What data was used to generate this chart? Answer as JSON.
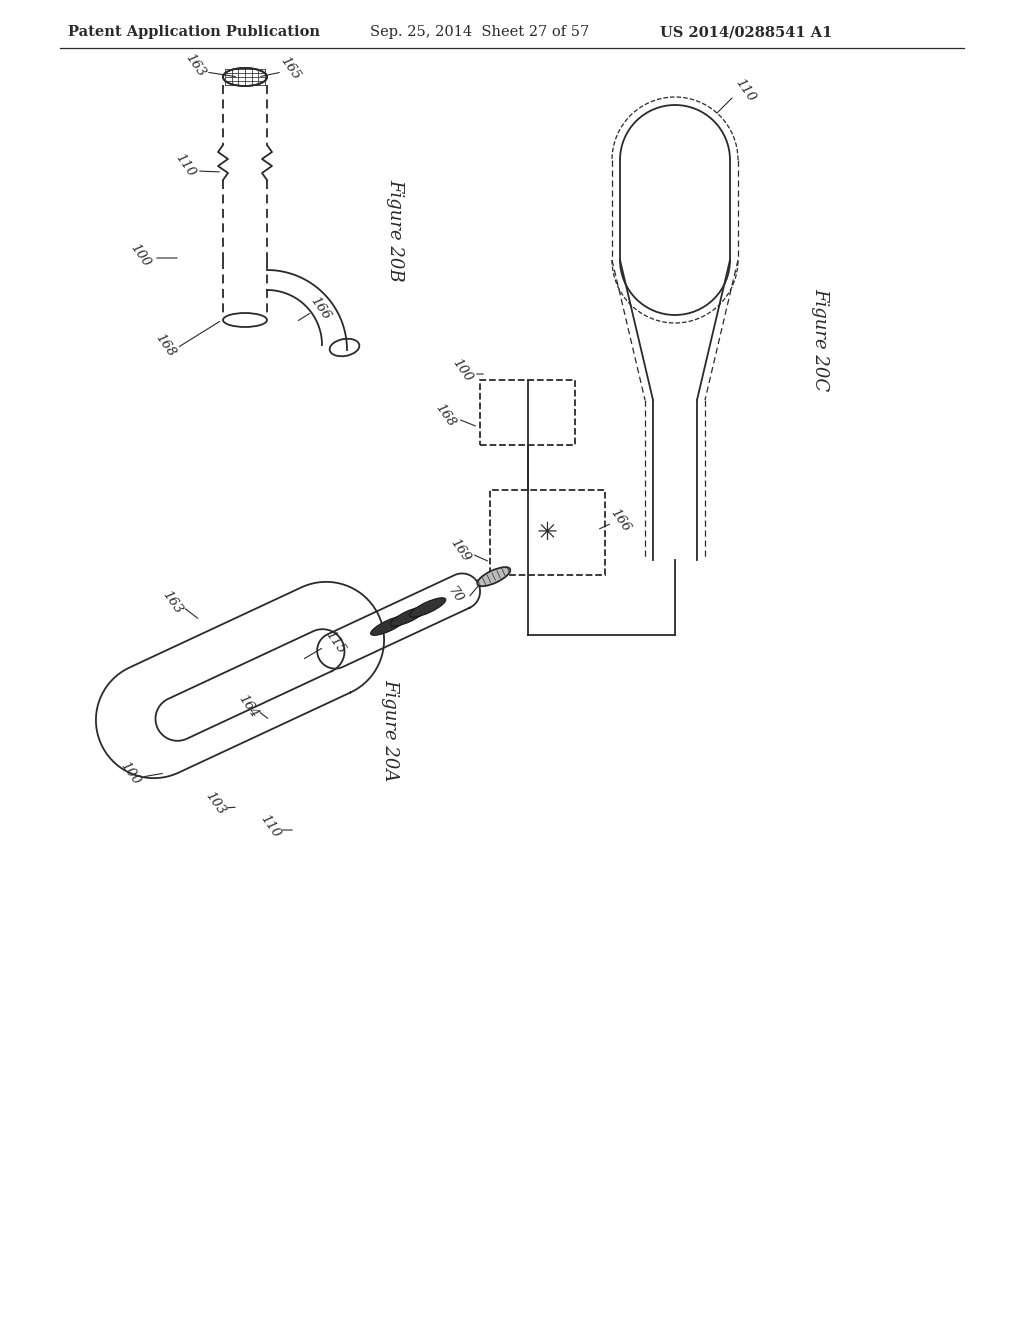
{
  "bg_color": "#ffffff",
  "line_color": "#2a2a2a",
  "header_left": "Patent Application Publication",
  "header_mid": "Sep. 25, 2014  Sheet 27 of 57",
  "header_right": "US 2014/0288541 A1",
  "fig20A": "Figure 20A",
  "fig20B": "Figure 20B",
  "fig20C": "Figure 20C"
}
